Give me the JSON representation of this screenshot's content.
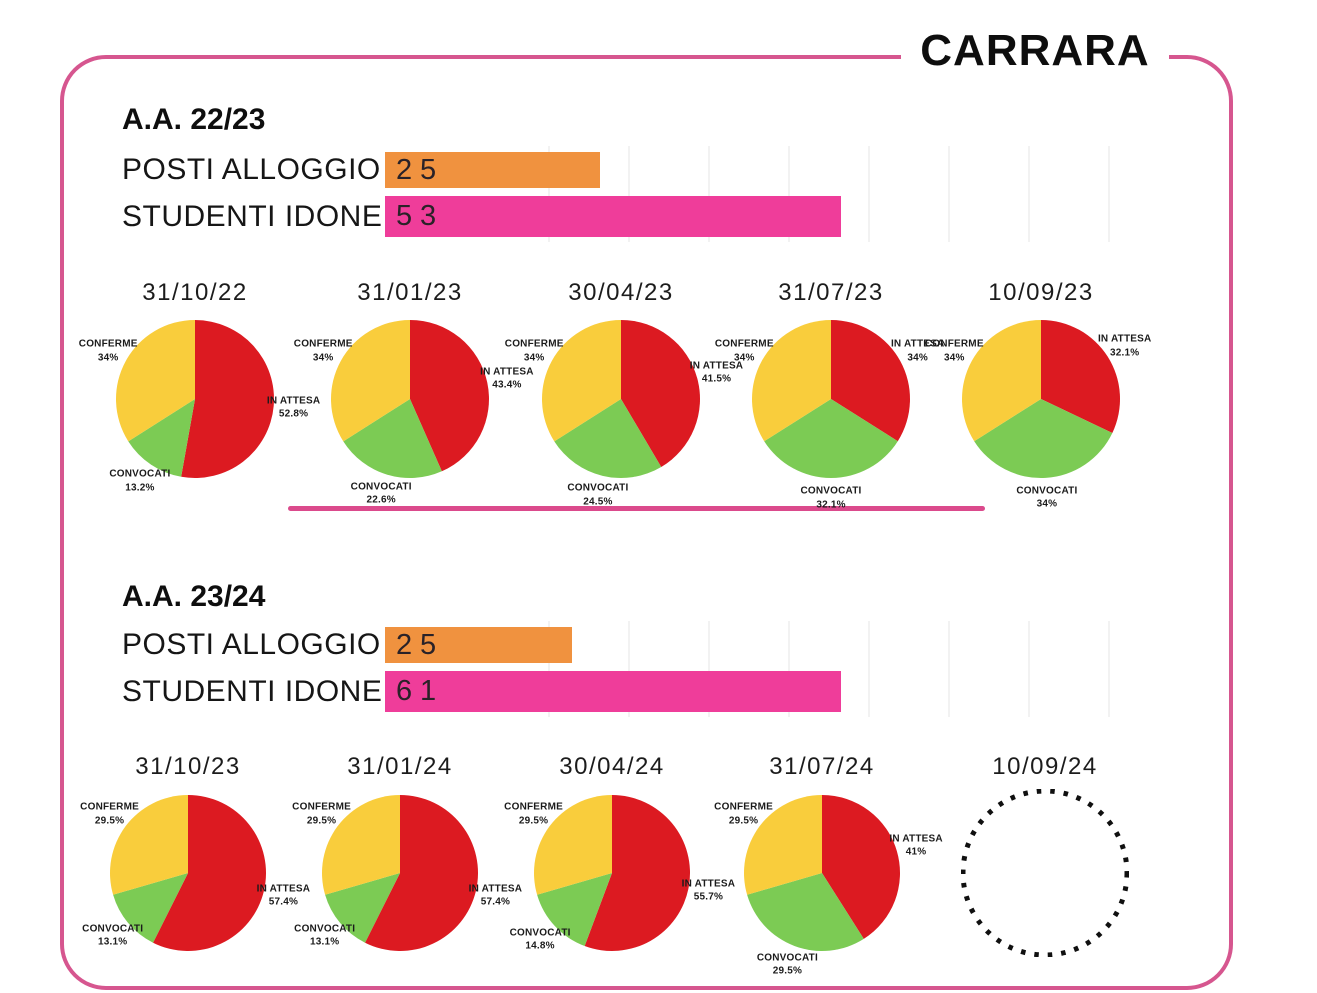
{
  "title": "CARRARA",
  "colors": {
    "frame_pink": "#D6568F",
    "divider_pink": "#DB4A8C",
    "bar_orange": "#F0923F",
    "bar_pink": "#EF3D9A",
    "pie_red": "#DC1A21",
    "pie_green": "#7CCB54",
    "pie_yellow": "#F9CD3C",
    "dotted_circle": "#101010"
  },
  "chart_data": {
    "type": "dashboard",
    "slice_colors": {
      "IN ATTESA": "#DC1A21",
      "CONVOCATI": "#7CCB54",
      "CONFERME": "#F9CD3C"
    },
    "sections": [
      {
        "header": "A.A. 22/23",
        "bar_chart": {
          "type": "bar",
          "orientation": "horizontal",
          "categories": [
            "POSTI ALLOGGIO",
            "STUDENTI IDONEI"
          ],
          "values": [
            25,
            53
          ],
          "bar_colors": [
            "#F0923F",
            "#EF3D9A"
          ]
        },
        "pie_charts": [
          {
            "type": "pie",
            "title": "31/10/22",
            "labels": [
              "IN ATTESA",
              "CONVOCATI",
              "CONFERME"
            ],
            "values": [
              52.8,
              13.2,
              34
            ],
            "pct_labels": [
              "52.8%",
              "13.2%",
              "34%"
            ],
            "empty": false
          },
          {
            "type": "pie",
            "title": "31/01/23",
            "labels": [
              "IN ATTESA",
              "CONVOCATI",
              "CONFERME"
            ],
            "values": [
              43.4,
              22.6,
              34
            ],
            "pct_labels": [
              "43.4%",
              "22.6%",
              "34%"
            ],
            "empty": false
          },
          {
            "type": "pie",
            "title": "30/04/23",
            "labels": [
              "IN ATTESA",
              "CONVOCATI",
              "CONFERME"
            ],
            "values": [
              41.5,
              24.5,
              34
            ],
            "pct_labels": [
              "41.5%",
              "24.5%",
              "34%"
            ],
            "empty": false
          },
          {
            "type": "pie",
            "title": "31/07/23",
            "labels": [
              "IN ATTESA",
              "CONVOCATI",
              "CONFERME"
            ],
            "values": [
              34,
              32.1,
              34
            ],
            "pct_labels": [
              "34%",
              "32.1%",
              "34%"
            ],
            "empty": false
          },
          {
            "type": "pie",
            "title": "10/09/23",
            "labels": [
              "IN ATTESA",
              "CONVOCATI",
              "CONFERME"
            ],
            "values": [
              32.1,
              34,
              34
            ],
            "pct_labels": [
              "32.1%",
              "34%",
              "34%"
            ],
            "empty": false
          }
        ]
      },
      {
        "header": "A.A. 23/24",
        "bar_chart": {
          "type": "bar",
          "orientation": "horizontal",
          "categories": [
            "POSTI ALLOGGIO",
            "STUDENTI IDONEI"
          ],
          "values": [
            25,
            61
          ],
          "bar_colors": [
            "#F0923F",
            "#EF3D9A"
          ]
        },
        "pie_charts": [
          {
            "type": "pie",
            "title": "31/10/23",
            "labels": [
              "IN ATTESA",
              "CONVOCATI",
              "CONFERME"
            ],
            "values": [
              57.4,
              13.1,
              29.5
            ],
            "pct_labels": [
              "57.4%",
              "13.1%",
              "29.5%"
            ],
            "empty": false
          },
          {
            "type": "pie",
            "title": "31/01/24",
            "labels": [
              "IN ATTESA",
              "CONVOCATI",
              "CONFERME"
            ],
            "values": [
              57.4,
              13.1,
              29.5
            ],
            "pct_labels": [
              "57.4%",
              "13.1%",
              "29.5%"
            ],
            "empty": false
          },
          {
            "type": "pie",
            "title": "30/04/24",
            "labels": [
              "IN ATTESA",
              "CONVOCATI",
              "CONFERME"
            ],
            "values": [
              55.7,
              14.8,
              29.5
            ],
            "pct_labels": [
              "55.7%",
              "14.8%",
              "29.5%"
            ],
            "empty": false
          },
          {
            "type": "pie",
            "title": "31/07/24",
            "labels": [
              "IN ATTESA",
              "CONVOCATI",
              "CONFERME"
            ],
            "values": [
              41,
              29.5,
              29.5
            ],
            "pct_labels": [
              "41%",
              "29.5%",
              "29.5%"
            ],
            "empty": false
          },
          {
            "type": "pie",
            "title": "10/09/24",
            "labels": [],
            "values": [],
            "pct_labels": [],
            "empty": true
          }
        ]
      }
    ]
  }
}
